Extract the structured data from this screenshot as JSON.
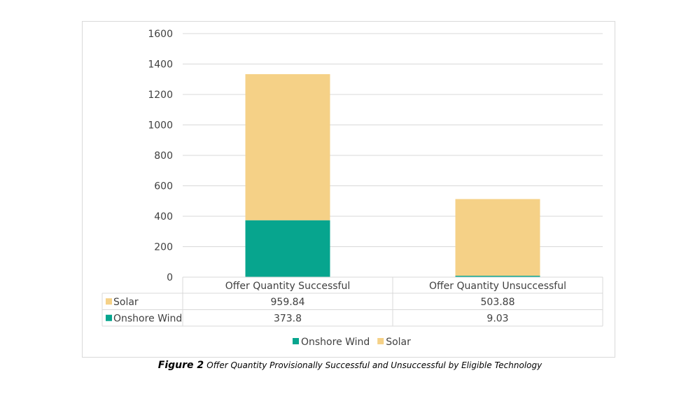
{
  "chart_data": {
    "type": "bar",
    "stacked": true,
    "categories": [
      "Offer Quantity Successful",
      "Offer Quantity Unsuccessful"
    ],
    "series": [
      {
        "name": "Onshore Wind",
        "values": [
          373.8,
          9.03
        ],
        "color": "#07a58e"
      },
      {
        "name": "Solar",
        "values": [
          959.84,
          503.88
        ],
        "color": "#f5d187"
      }
    ],
    "table_rows": [
      {
        "name": "Solar",
        "values": [
          "959.84",
          "503.88"
        ],
        "color": "#f5d187"
      },
      {
        "name": "Onshore Wind",
        "values": [
          "373.8",
          "9.03"
        ],
        "color": "#07a58e"
      }
    ],
    "ylim": [
      0,
      1600
    ],
    "yticks": [
      0,
      200,
      400,
      600,
      800,
      1000,
      1200,
      1400,
      1600
    ],
    "grid": true,
    "legend_position": "bottom",
    "legend": [
      "Onshore Wind",
      "Solar"
    ],
    "data_table": true
  },
  "caption": {
    "label": "Figure 2",
    "text": "Offer Quantity Provisionally Successful and Unsuccessful by Eligible Technology"
  }
}
